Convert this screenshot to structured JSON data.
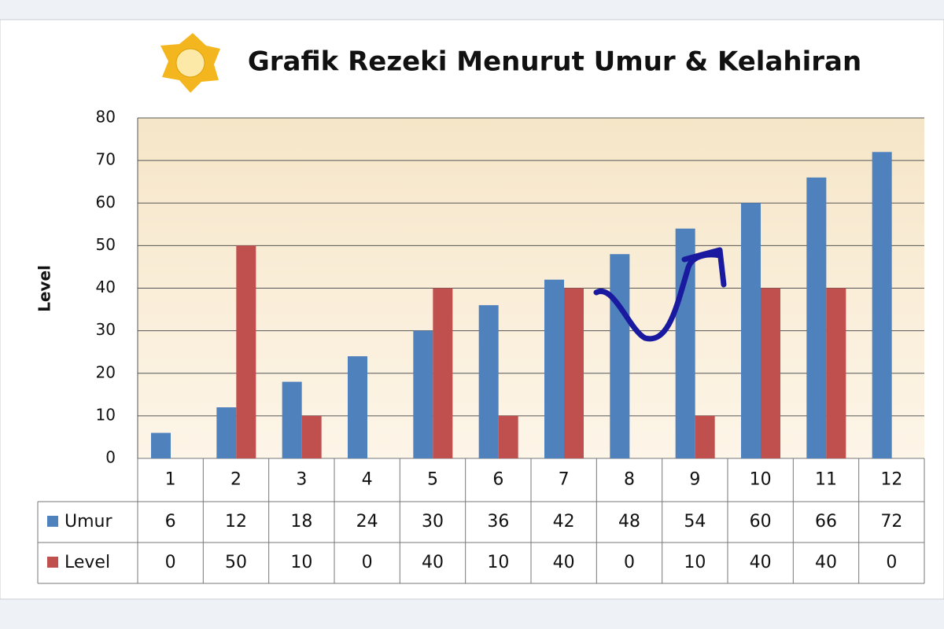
{
  "chart_data": {
    "type": "bar",
    "title": "Grafik Rezeki Menurut Umur & Kelahiran",
    "y_label": "Level",
    "categories": [
      "1",
      "2",
      "3",
      "4",
      "5",
      "6",
      "7",
      "8",
      "9",
      "10",
      "11",
      "12"
    ],
    "series": [
      {
        "name": "Umur",
        "color": "#4f81bd",
        "values": [
          6,
          12,
          18,
          24,
          30,
          36,
          42,
          48,
          54,
          60,
          66,
          72
        ]
      },
      {
        "name": "Level",
        "color": "#c0504d",
        "values": [
          0,
          50,
          10,
          0,
          40,
          10,
          40,
          0,
          10,
          40,
          40,
          0
        ]
      }
    ],
    "ylim": [
      0,
      80
    ],
    "yticks": [
      0,
      10,
      20,
      30,
      40,
      50,
      60,
      70,
      80
    ],
    "grid": true,
    "data_table": true
  }
}
